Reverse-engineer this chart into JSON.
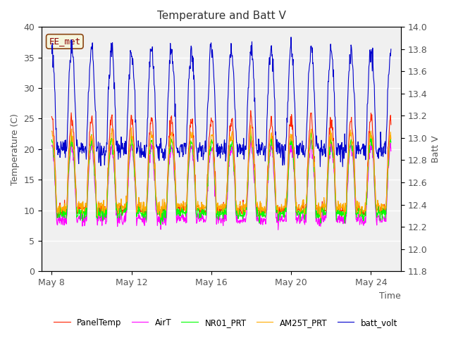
{
  "title": "Temperature and Batt V",
  "xlabel": "Time",
  "ylabel_left": "Temperature (C)",
  "ylabel_right": "Batt V",
  "annotation": "EE_met",
  "xlim_days": [
    7.5,
    25.5
  ],
  "ylim_left": [
    0,
    40
  ],
  "ylim_right": [
    11.8,
    14.0
  ],
  "xtick_labels": [
    "May 8",
    "May 12",
    "May 16",
    "May 20",
    "May 24"
  ],
  "xtick_positions": [
    8,
    12,
    16,
    20,
    24
  ],
  "ytick_left": [
    0,
    5,
    10,
    15,
    20,
    25,
    30,
    35,
    40
  ],
  "ytick_right": [
    11.8,
    12.0,
    12.2,
    12.4,
    12.6,
    12.8,
    13.0,
    13.2,
    13.4,
    13.6,
    13.8,
    14.0
  ],
  "legend_entries": [
    "PanelTemp",
    "AirT",
    "NR01_PRT",
    "AM25T_PRT",
    "batt_volt"
  ],
  "legend_colors": [
    "#ff2200",
    "#ff00ff",
    "#00ff00",
    "#ffaa00",
    "#0000cc"
  ],
  "bg_color": "#e8e8e8",
  "plot_bg_color": "#f0f0f0",
  "grid_color": "#ffffff",
  "seed": 42,
  "num_days": 17,
  "points_per_day": 48
}
